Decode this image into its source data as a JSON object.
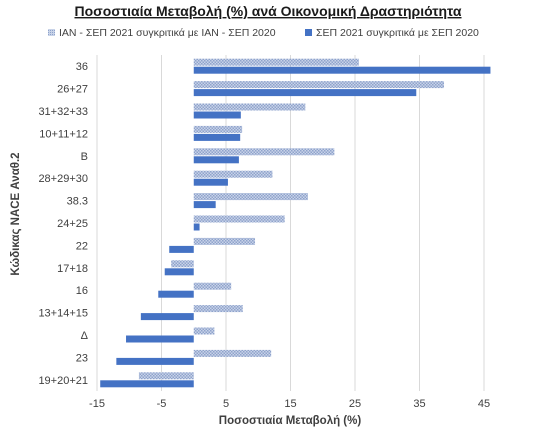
{
  "chart_data": {
    "type": "bar",
    "orientation": "horizontal",
    "title": "Ποσοστιαία Μεταβολή (%) ανά Οικονομική Δραστηριότητα",
    "xlabel": "Ποσοστιαία Μεταβολή (%)",
    "ylabel": "Κώδικας NACE Αναθ.2",
    "categories": [
      "36",
      "26+27",
      "31+32+33",
      "10+11+12",
      "B",
      "28+29+30",
      "38.3",
      "24+25",
      "22",
      "17+18",
      "16",
      "13+14+15",
      "Δ",
      "23",
      "19+20+21"
    ],
    "series": [
      {
        "name": "ΙΑΝ - ΣΕΠ 2021 συγκριτικά με ΙΑΝ - ΣΕΠ 2020",
        "color": "#a9b8d6",
        "pattern": "dotted",
        "values": [
          25.6,
          38.8,
          17.3,
          7.5,
          21.8,
          12.2,
          17.7,
          14.1,
          9.5,
          -3.5,
          5.8,
          7.6,
          3.2,
          12.0,
          -8.5
        ]
      },
      {
        "name": "ΣΕΠ 2021 συγκριτικά με ΣΕΠ 2020",
        "color": "#4472c4",
        "pattern": "solid",
        "values": [
          46.0,
          34.5,
          7.3,
          7.2,
          7.0,
          5.3,
          3.4,
          0.9,
          -3.8,
          -4.5,
          -5.5,
          -8.2,
          -10.5,
          -12.0,
          -14.5
        ]
      }
    ],
    "xlim": [
      -15,
      45
    ],
    "xticks": [
      -15,
      -5,
      5,
      15,
      25,
      35,
      45
    ],
    "grid": true,
    "legend": "top"
  }
}
